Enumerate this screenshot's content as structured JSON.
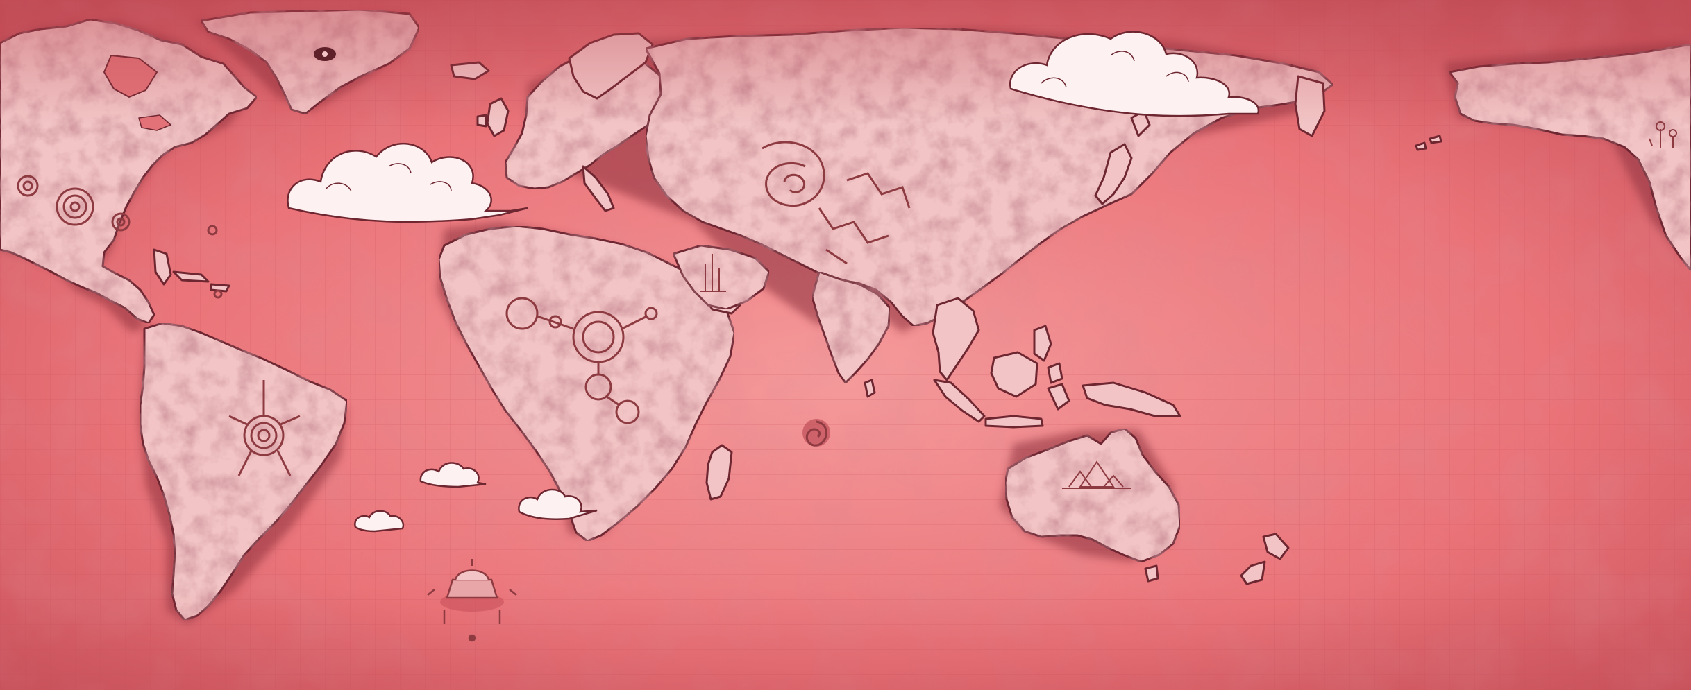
{
  "map": {
    "style": "stylized world map, red-tinted parchment",
    "colors": {
      "ocean": "#ee7b80",
      "ocean_dark": "#c9525b",
      "ocean_light": "#f3979a",
      "land": "#f2c6c6",
      "land_shade": "#dca0a3",
      "land_dark": "#8f3c44",
      "coast_outline": "#6e2630",
      "cloud": "#fdf2f1",
      "cloud_shade": "#e9b7b9",
      "ink": "#8e3a41",
      "grid": "#d55c64"
    },
    "regions": [
      {
        "name": "north-america"
      },
      {
        "name": "greenland"
      },
      {
        "name": "south-america"
      },
      {
        "name": "europe"
      },
      {
        "name": "africa"
      },
      {
        "name": "madagascar"
      },
      {
        "name": "arabian-peninsula"
      },
      {
        "name": "asia"
      },
      {
        "name": "india"
      },
      {
        "name": "japan"
      },
      {
        "name": "southeast-asia"
      },
      {
        "name": "indonesia"
      },
      {
        "name": "new-guinea"
      },
      {
        "name": "australia"
      },
      {
        "name": "new-zealand"
      },
      {
        "name": "alaska"
      },
      {
        "name": "uk"
      },
      {
        "name": "iceland"
      }
    ],
    "markers": [
      {
        "name": "na-target-small",
        "icon": "target-icon"
      },
      {
        "name": "na-target-large",
        "icon": "target-icon"
      },
      {
        "name": "na-target-mid",
        "icon": "target-icon"
      },
      {
        "name": "sa-sun-glyph",
        "icon": "sun-glyph-icon"
      },
      {
        "name": "africa-circuit",
        "icon": "circuit-icon"
      },
      {
        "name": "asia-spiral",
        "icon": "spiral-icon"
      },
      {
        "name": "arabia-spires",
        "icon": "spire-icon"
      },
      {
        "name": "indian-ocean-whirlpool",
        "icon": "whirlpool-icon"
      },
      {
        "name": "australia-pyramid",
        "icon": "pyramid-icon"
      },
      {
        "name": "atlantic-fortress",
        "icon": "fortress-icon"
      },
      {
        "name": "alaska-antennas",
        "icon": "antenna-icon"
      },
      {
        "name": "greenland-eye",
        "icon": "eye-icon"
      }
    ],
    "clouds": [
      {
        "name": "cloud-north-atlantic"
      },
      {
        "name": "cloud-siberia"
      },
      {
        "name": "cloud-south-atlantic-1"
      },
      {
        "name": "cloud-south-atlantic-2"
      },
      {
        "name": "cloud-south-atlantic-3"
      }
    ]
  }
}
